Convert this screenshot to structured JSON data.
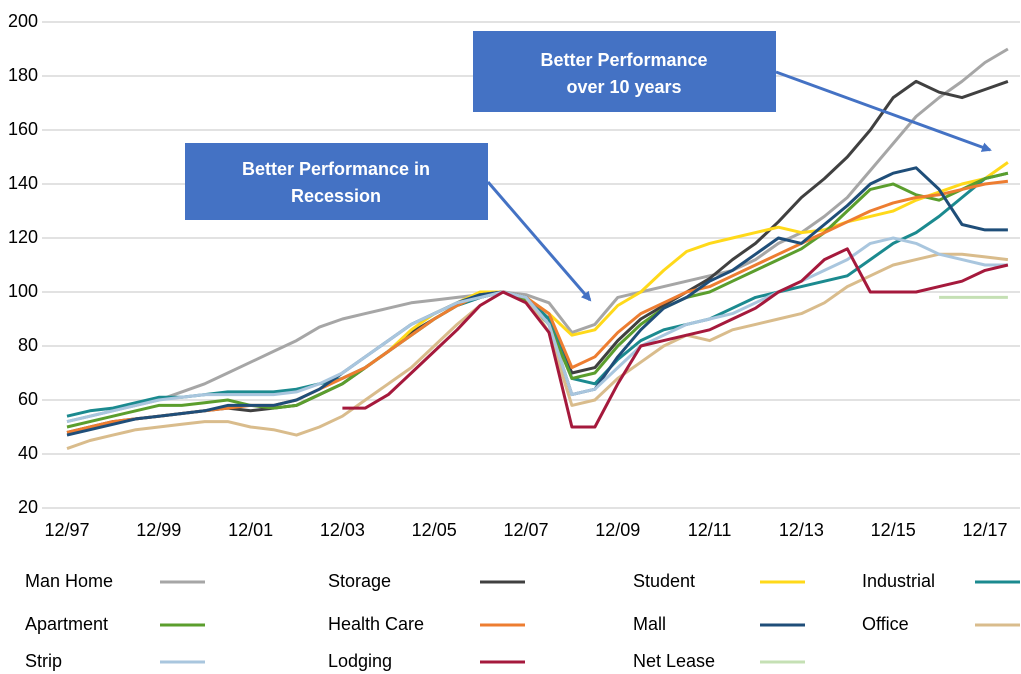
{
  "chart_data": {
    "type": "line",
    "categories": [
      "12/97",
      null,
      null,
      null,
      "12/99",
      null,
      null,
      null,
      "12/01",
      null,
      null,
      null,
      "12/03",
      null,
      null,
      null,
      "12/05",
      null,
      null,
      null,
      "12/07",
      null,
      null,
      null,
      "12/09",
      null,
      null,
      null,
      "12/11",
      null,
      null,
      null,
      "12/13",
      null,
      null,
      null,
      "12/15",
      null,
      null,
      null,
      "12/17",
      null
    ],
    "ylim": [
      20,
      200
    ],
    "yticks": [
      20,
      40,
      60,
      80,
      100,
      120,
      140,
      160,
      180,
      200
    ],
    "grid": true,
    "annotations": [
      {
        "lines": [
          "Better Performance in",
          "Recession"
        ]
      },
      {
        "lines": [
          "Better Performance",
          "over 10 years"
        ]
      }
    ],
    "series": [
      {
        "name": "Man Home",
        "color": "#a6a6a6",
        "values": [
          52,
          54,
          56,
          58,
          60,
          63,
          66,
          70,
          74,
          78,
          82,
          87,
          90,
          92,
          94,
          96,
          97,
          98,
          99,
          100,
          99,
          96,
          85,
          88,
          98,
          100,
          102,
          104,
          106,
          108,
          112,
          118,
          122,
          128,
          135,
          145,
          155,
          165,
          172,
          178,
          185,
          190
        ]
      },
      {
        "name": "Storage",
        "color": "#404040",
        "values": [
          48,
          50,
          52,
          53,
          54,
          55,
          56,
          57,
          56,
          57,
          58,
          62,
          66,
          72,
          78,
          85,
          90,
          95,
          98,
          100,
          98,
          90,
          70,
          72,
          82,
          90,
          95,
          100,
          105,
          112,
          118,
          126,
          135,
          142,
          150,
          160,
          172,
          178,
          174,
          172,
          175,
          178
        ]
      },
      {
        "name": "Student",
        "color": "#ffd91a",
        "values": [
          null,
          null,
          null,
          null,
          null,
          null,
          null,
          null,
          null,
          null,
          null,
          null,
          null,
          72,
          78,
          86,
          92,
          96,
          100,
          100,
          98,
          92,
          84,
          86,
          95,
          100,
          108,
          115,
          118,
          120,
          122,
          124,
          122,
          123,
          126,
          128,
          130,
          134,
          137,
          140,
          142,
          148
        ]
      },
      {
        "name": "Industrial",
        "color": "#1b8a8f",
        "values": [
          54,
          56,
          57,
          59,
          61,
          61,
          62,
          63,
          63,
          63,
          64,
          66,
          68,
          72,
          78,
          84,
          90,
          95,
          98,
          100,
          98,
          90,
          68,
          66,
          75,
          82,
          86,
          88,
          90,
          94,
          98,
          100,
          102,
          104,
          106,
          112,
          118,
          122,
          128,
          135,
          142,
          144
        ]
      },
      {
        "name": "Apartment",
        "color": "#5b9e2d",
        "values": [
          50,
          52,
          54,
          56,
          58,
          58,
          59,
          60,
          58,
          57,
          58,
          62,
          66,
          72,
          78,
          84,
          90,
          95,
          99,
          100,
          97,
          88,
          68,
          70,
          80,
          88,
          94,
          98,
          100,
          104,
          108,
          112,
          116,
          122,
          130,
          138,
          140,
          136,
          134,
          138,
          142,
          144
        ]
      },
      {
        "name": "Health Care",
        "color": "#ed7d31",
        "values": [
          48,
          50,
          52,
          53,
          54,
          55,
          56,
          57,
          58,
          58,
          60,
          64,
          68,
          72,
          78,
          84,
          90,
          95,
          99,
          100,
          98,
          92,
          72,
          76,
          85,
          92,
          96,
          100,
          102,
          106,
          110,
          114,
          118,
          122,
          126,
          130,
          133,
          135,
          136,
          138,
          140,
          141
        ]
      },
      {
        "name": "Mall",
        "color": "#1f4e79",
        "values": [
          47,
          49,
          51,
          53,
          54,
          55,
          56,
          58,
          58,
          58,
          60,
          64,
          70,
          76,
          82,
          88,
          92,
          96,
          99,
          100,
          98,
          88,
          62,
          64,
          76,
          86,
          94,
          98,
          104,
          108,
          114,
          120,
          118,
          125,
          132,
          140,
          144,
          146,
          138,
          125,
          123,
          123
        ]
      },
      {
        "name": "Office",
        "color": "#d9bc8c",
        "values": [
          42,
          45,
          47,
          49,
          50,
          51,
          52,
          52,
          50,
          49,
          47,
          50,
          54,
          60,
          66,
          72,
          80,
          88,
          95,
          100,
          98,
          85,
          58,
          60,
          68,
          74,
          80,
          84,
          82,
          86,
          88,
          90,
          92,
          96,
          102,
          106,
          110,
          112,
          114,
          114,
          113,
          112
        ]
      },
      {
        "name": "Strip",
        "color": "#a9c6de",
        "values": [
          52,
          54,
          56,
          58,
          60,
          61,
          62,
          62,
          62,
          62,
          63,
          66,
          70,
          76,
          82,
          88,
          92,
          96,
          98,
          100,
          98,
          88,
          62,
          64,
          72,
          80,
          84,
          88,
          90,
          92,
          96,
          100,
          104,
          108,
          112,
          118,
          120,
          118,
          114,
          112,
          110,
          110
        ]
      },
      {
        "name": "Lodging",
        "color": "#a5193c",
        "values": [
          null,
          null,
          null,
          null,
          null,
          null,
          null,
          null,
          null,
          null,
          null,
          null,
          57,
          57,
          62,
          70,
          78,
          86,
          95,
          100,
          96,
          85,
          50,
          50,
          66,
          80,
          82,
          84,
          86,
          90,
          94,
          100,
          104,
          112,
          116,
          100,
          100,
          100,
          102,
          104,
          108,
          110
        ]
      },
      {
        "name": "Net Lease",
        "color": "#c5e0b4",
        "values": [
          null,
          null,
          null,
          null,
          null,
          null,
          null,
          null,
          null,
          null,
          null,
          null,
          null,
          null,
          null,
          null,
          null,
          null,
          null,
          null,
          null,
          null,
          null,
          null,
          null,
          null,
          null,
          null,
          null,
          null,
          null,
          null,
          null,
          null,
          null,
          null,
          null,
          null,
          98,
          98,
          98,
          98
        ]
      }
    ]
  }
}
